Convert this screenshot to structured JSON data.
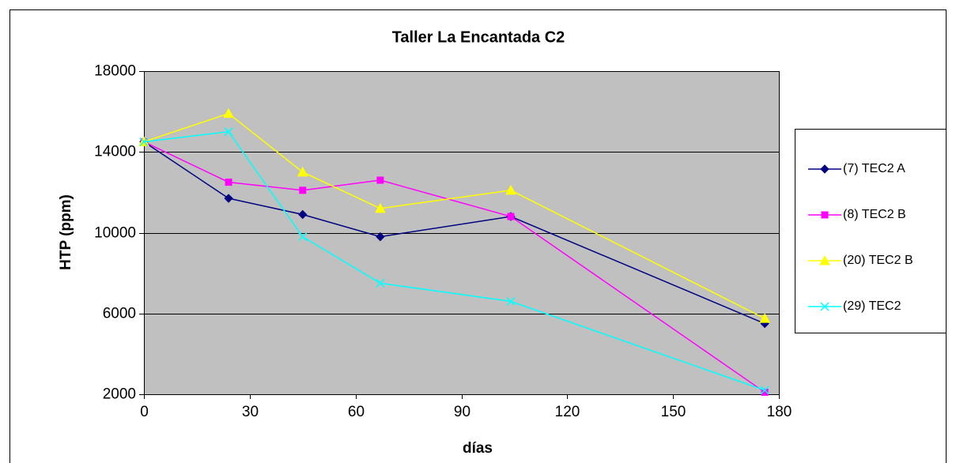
{
  "chart_data": {
    "type": "line",
    "title": "Taller La Encantada C2",
    "x_label": "días",
    "y_label": "HTP (ppm)",
    "x": [
      0,
      24,
      45,
      67,
      104,
      176
    ],
    "series": [
      {
        "name": "(7) TEC2 A",
        "color": "#000080",
        "marker": "diamond",
        "values": [
          14500,
          11700,
          10900,
          9800,
          10800,
          5500
        ]
      },
      {
        "name": "(8) TEC2 B",
        "color": "#ff00ff",
        "marker": "square",
        "values": [
          14500,
          12500,
          12100,
          12600,
          10800,
          2100
        ]
      },
      {
        "name": "(20) TEC2 B",
        "color": "#ffff00",
        "marker": "triangle",
        "values": [
          14500,
          15900,
          13000,
          11200,
          12100,
          5750
        ]
      },
      {
        "name": "(29) TEC2",
        "color": "#00ffff",
        "marker": "x",
        "values": [
          14500,
          15000,
          9800,
          7500,
          6600,
          2200
        ]
      }
    ],
    "xlim": [
      0,
      180
    ],
    "xticks": [
      0,
      30,
      60,
      90,
      120,
      150,
      180
    ],
    "ylim": [
      2000,
      18000
    ],
    "yticks": [
      2000,
      6000,
      10000,
      14000,
      18000
    ],
    "grid": true,
    "legend": "right",
    "plot_background": "#c0c0c0"
  }
}
